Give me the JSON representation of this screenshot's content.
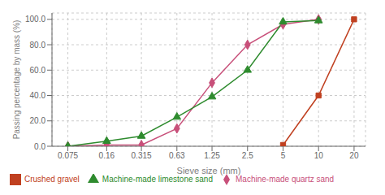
{
  "chart_data": {
    "type": "line",
    "xlabel": "Sieve size (mm)",
    "ylabel": "Passing percentage by mass (%)",
    "x": [
      0.075,
      0.16,
      0.315,
      0.63,
      1.25,
      2.5,
      5,
      10,
      20
    ],
    "series": [
      {
        "name": "Machine-made quartz sand",
        "color": "#c8507a",
        "marker": "diamond",
        "values": [
          0.0,
          1.0,
          1.0,
          14.0,
          50.0,
          80.0,
          96.0,
          100.0,
          null
        ]
      },
      {
        "name": "Machine-made limestone sand",
        "color": "#2e8b2e",
        "marker": "triangle",
        "values": [
          0.0,
          4.0,
          8.0,
          23.0,
          39.0,
          60.0,
          98.0,
          99.0,
          null
        ]
      },
      {
        "name": "Crushed gravel",
        "color": "#c04020",
        "marker": "square",
        "values": [
          null,
          null,
          null,
          null,
          null,
          null,
          1.0,
          40.0,
          100.0
        ]
      }
    ],
    "log": "x",
    "xlim": [
      0.055,
      25
    ],
    "xticks": [
      0.075,
      0.16,
      0.315,
      0.63,
      1.25,
      2.5,
      5,
      10,
      20
    ],
    "ylim": [
      0,
      105
    ],
    "yticks": [
      {
        "value": 0,
        "label": "0.0"
      },
      {
        "value": 20,
        "label": "20.0"
      },
      {
        "value": 40,
        "label": "40.0"
      },
      {
        "value": 60,
        "label": "60.0"
      },
      {
        "value": 80,
        "label": "80.0"
      },
      {
        "value": 100,
        "label": "100.0"
      }
    ],
    "grid": true,
    "legend": "lower left"
  }
}
